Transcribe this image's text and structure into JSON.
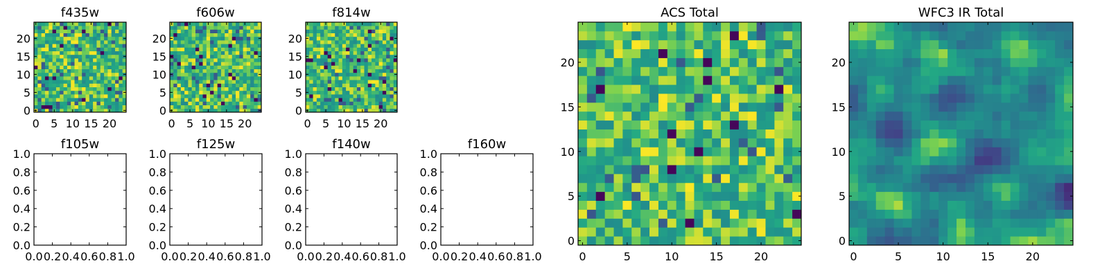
{
  "chart_data": [
    {
      "type": "heatmap",
      "title": "f435w",
      "grid_size": [
        25,
        25
      ],
      "xlim": [
        -0.5,
        24.5
      ],
      "ylim": [
        -0.5,
        24.5
      ],
      "x_ticks": [
        0,
        5,
        10,
        15,
        20
      ],
      "y_ticks": [
        0,
        5,
        10,
        15,
        20
      ],
      "x_tick_labels": [
        "0",
        "5",
        "10",
        "15",
        "20"
      ],
      "y_tick_labels": [
        "0",
        "5",
        "10",
        "15",
        "20"
      ],
      "colormap": "viridis",
      "texture": "noise",
      "grid": false
    },
    {
      "type": "heatmap",
      "title": "f606w",
      "grid_size": [
        25,
        25
      ],
      "xlim": [
        -0.5,
        24.5
      ],
      "ylim": [
        -0.5,
        24.5
      ],
      "x_ticks": [
        0,
        5,
        10,
        15,
        20
      ],
      "y_ticks": [
        0,
        5,
        10,
        15,
        20
      ],
      "x_tick_labels": [
        "0",
        "5",
        "10",
        "15",
        "20"
      ],
      "y_tick_labels": [
        "0",
        "5",
        "10",
        "15",
        "20"
      ],
      "colormap": "viridis",
      "texture": "noise",
      "grid": false
    },
    {
      "type": "heatmap",
      "title": "f814w",
      "grid_size": [
        25,
        25
      ],
      "xlim": [
        -0.5,
        24.5
      ],
      "ylim": [
        -0.5,
        24.5
      ],
      "x_ticks": [
        0,
        5,
        10,
        15,
        20
      ],
      "y_ticks": [
        0,
        5,
        10,
        15,
        20
      ],
      "x_tick_labels": [
        "0",
        "5",
        "10",
        "15",
        "20"
      ],
      "y_tick_labels": [
        "0",
        "5",
        "10",
        "15",
        "20"
      ],
      "colormap": "viridis",
      "texture": "noise",
      "grid": false
    },
    {
      "type": "empty",
      "title": "f105w",
      "xlim": [
        0,
        1
      ],
      "ylim": [
        0,
        1
      ],
      "x_ticks": [
        0,
        0.2,
        0.4,
        0.6,
        0.8,
        1
      ],
      "y_ticks": [
        0,
        0.2,
        0.4,
        0.6,
        0.8,
        1
      ],
      "x_tick_labels": [
        "0.0",
        "0.2",
        "0.4",
        "0.6",
        "0.8",
        "1.0"
      ],
      "y_tick_labels": [
        "0.0",
        "0.2",
        "0.4",
        "0.6",
        "0.8",
        "1.0"
      ],
      "grid": false
    },
    {
      "type": "empty",
      "title": "f125w",
      "xlim": [
        0,
        1
      ],
      "ylim": [
        0,
        1
      ],
      "x_ticks": [
        0,
        0.2,
        0.4,
        0.6,
        0.8,
        1
      ],
      "y_ticks": [
        0,
        0.2,
        0.4,
        0.6,
        0.8,
        1
      ],
      "x_tick_labels": [
        "0.0",
        "0.2",
        "0.4",
        "0.6",
        "0.8",
        "1.0"
      ],
      "y_tick_labels": [
        "0.0",
        "0.2",
        "0.4",
        "0.6",
        "0.8",
        "1.0"
      ],
      "grid": false
    },
    {
      "type": "empty",
      "title": "f140w",
      "xlim": [
        0,
        1
      ],
      "ylim": [
        0,
        1
      ],
      "x_ticks": [
        0,
        0.2,
        0.4,
        0.6,
        0.8,
        1
      ],
      "y_ticks": [
        0,
        0.2,
        0.4,
        0.6,
        0.8,
        1
      ],
      "x_tick_labels": [
        "0.0",
        "0.2",
        "0.4",
        "0.6",
        "0.8",
        "1.0"
      ],
      "y_tick_labels": [
        "0.0",
        "0.2",
        "0.4",
        "0.6",
        "0.8",
        "1.0"
      ],
      "grid": false
    },
    {
      "type": "empty",
      "title": "f160w",
      "xlim": [
        0,
        1
      ],
      "ylim": [
        0,
        1
      ],
      "x_ticks": [
        0,
        0.2,
        0.4,
        0.6,
        0.8,
        1
      ],
      "y_ticks": [
        0,
        0.2,
        0.4,
        0.6,
        0.8,
        1
      ],
      "x_tick_labels": [
        "0.0",
        "0.2",
        "0.4",
        "0.6",
        "0.8",
        "1.0"
      ],
      "y_tick_labels": [
        "0.0",
        "0.2",
        "0.4",
        "0.6",
        "0.8",
        "1.0"
      ],
      "grid": false
    },
    {
      "type": "heatmap",
      "title": "ACS Total",
      "grid_size": [
        25,
        25
      ],
      "xlim": [
        -0.5,
        24.5
      ],
      "ylim": [
        -0.5,
        24.5
      ],
      "x_ticks": [
        0,
        5,
        10,
        15,
        20
      ],
      "y_ticks": [
        0,
        5,
        10,
        15,
        20
      ],
      "x_tick_labels": [
        "0",
        "5",
        "10",
        "15",
        "20"
      ],
      "y_tick_labels": [
        "0",
        "5",
        "10",
        "15",
        "20"
      ],
      "colormap": "viridis",
      "texture": "noise",
      "grid": false
    },
    {
      "type": "heatmap",
      "title": "WFC3 IR Total",
      "grid_size": [
        25,
        25
      ],
      "xlim": [
        -0.5,
        24.5
      ],
      "ylim": [
        -0.5,
        24.5
      ],
      "x_ticks": [
        0,
        5,
        10,
        15,
        20
      ],
      "y_ticks": [
        0,
        5,
        10,
        15,
        20
      ],
      "x_tick_labels": [
        "0",
        "5",
        "10",
        "15",
        "20"
      ],
      "y_tick_labels": [
        "0",
        "5",
        "10",
        "15",
        "20"
      ],
      "colormap": "viridis",
      "texture": "smooth",
      "grid": false
    }
  ]
}
